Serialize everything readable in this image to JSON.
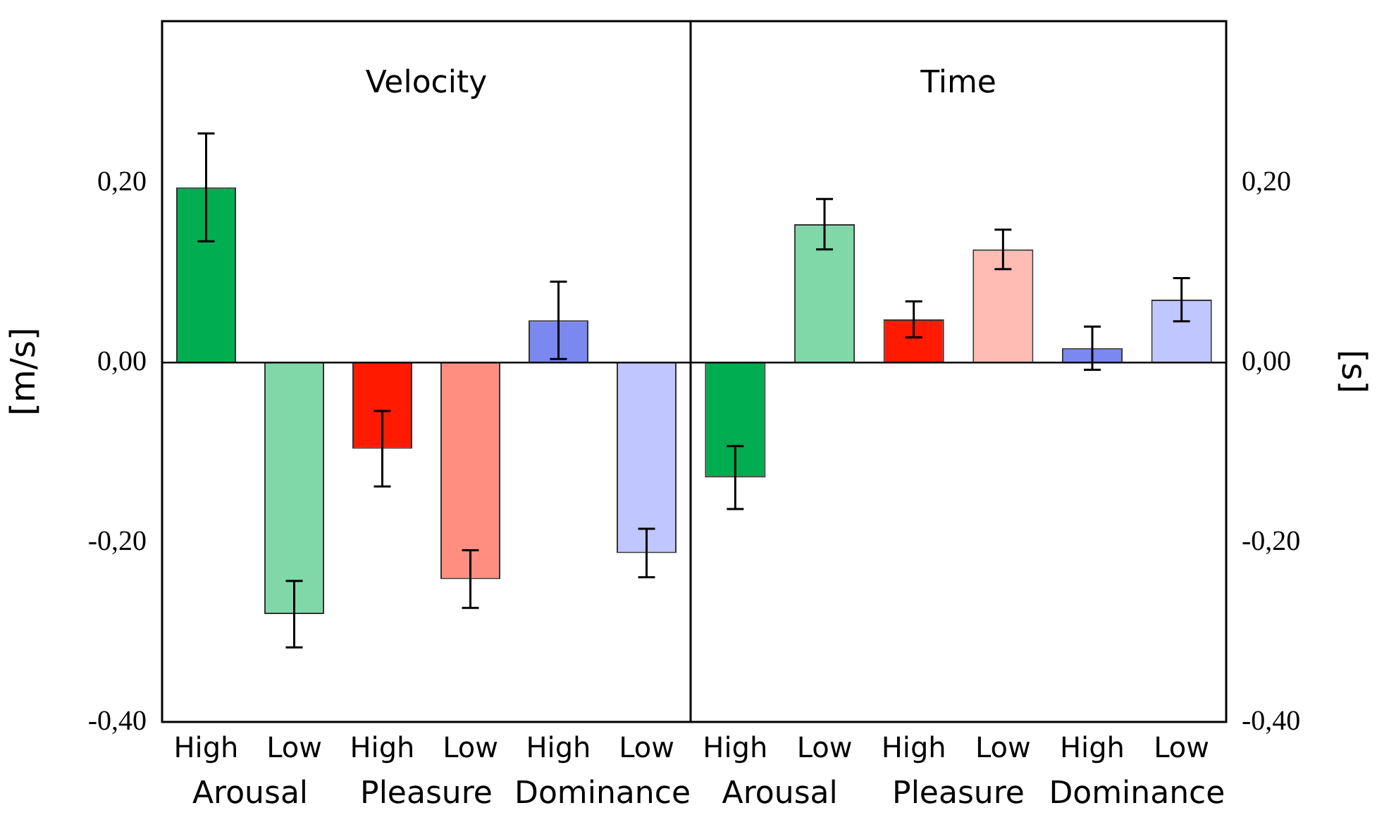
{
  "chart_data": [
    {
      "type": "bar",
      "title": "Velocity",
      "ylabel": "[m/s]",
      "categories": [
        "High",
        "Low",
        "High",
        "Low",
        "High",
        "Low"
      ],
      "series": [
        {
          "values": [
            0.195,
            -0.28,
            -0.096,
            -0.241,
            0.047,
            -0.212
          ],
          "errors": [
            0.06,
            0.037,
            0.042,
            0.032,
            0.043,
            0.027
          ],
          "colors": [
            "#00ad50",
            "#80d8a8",
            "#ff1a00",
            "#ff8e80",
            "#7a88f0",
            "#c0c6ff"
          ]
        }
      ],
      "ylim": [
        -0.4,
        0.38
      ],
      "yticks": [
        {
          "value": -0.4,
          "label": "-0,40"
        },
        {
          "value": -0.2,
          "label": "-0,20"
        },
        {
          "value": 0,
          "label": "0,00"
        },
        {
          "value": 0.2,
          "label": "0,20"
        }
      ],
      "ref_lines": [
        {
          "axis": "y",
          "value": 0
        }
      ],
      "annotations": [
        "Arousal",
        "Pleasure",
        "Dominance"
      ],
      "grid": false,
      "legend": false
    },
    {
      "type": "bar",
      "title": "Time",
      "y2label": "[s]",
      "categories": [
        "High",
        "Low",
        "High",
        "Low",
        "High",
        "Low"
      ],
      "series": [
        {
          "axis": "y2",
          "values": [
            -0.128,
            0.154,
            0.048,
            0.126,
            0.016,
            0.07
          ],
          "errors": [
            0.035,
            0.028,
            0.02,
            0.022,
            0.024,
            0.024
          ],
          "colors": [
            "#00ad50",
            "#80d8a8",
            "#ff1a00",
            "#ffbcb5",
            "#7a88f0",
            "#c0c6ff"
          ]
        }
      ],
      "y2lim": [
        -0.4,
        0.38
      ],
      "y2ticks": [
        {
          "value": -0.4,
          "label": "-0,40"
        },
        {
          "value": -0.2,
          "label": "-0,20"
        },
        {
          "value": 0,
          "label": "0,00"
        },
        {
          "value": 0.2,
          "label": "0,20"
        }
      ],
      "ref_lines": [
        {
          "axis": "y2",
          "value": 0
        }
      ],
      "annotations": [
        "Arousal",
        "Pleasure",
        "Dominance"
      ],
      "grid": false,
      "legend": false
    }
  ]
}
